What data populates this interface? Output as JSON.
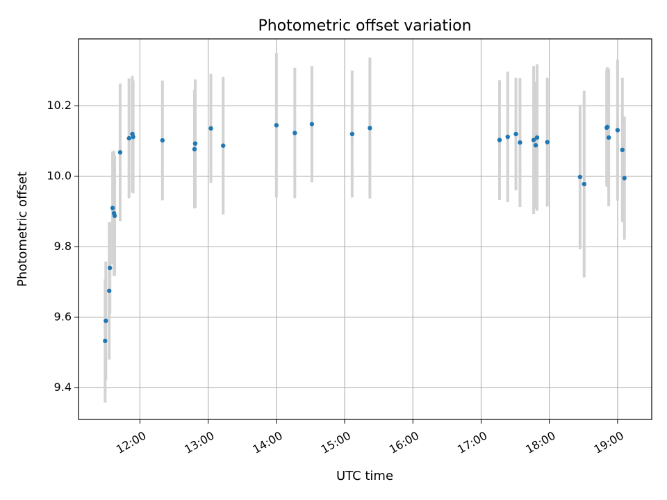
{
  "chart_data": {
    "type": "scatter",
    "title": "Photometric offset variation",
    "xlabel": "UTC time",
    "ylabel": "Photometric offset",
    "x_unit": "hours UTC",
    "xlim": [
      11.1,
      19.5
    ],
    "ylim": [
      9.31,
      10.39
    ],
    "grid": true,
    "point_color": "#1f77b4",
    "errorbar_color": "#d3d3d3",
    "x_ticks": [
      {
        "value": 12,
        "label": "12:00"
      },
      {
        "value": 13,
        "label": "13:00"
      },
      {
        "value": 14,
        "label": "14:00"
      },
      {
        "value": 15,
        "label": "15:00"
      },
      {
        "value": 16,
        "label": "16:00"
      },
      {
        "value": 17,
        "label": "17:00"
      },
      {
        "value": 18,
        "label": "18:00"
      },
      {
        "value": 19,
        "label": "19:00"
      }
    ],
    "y_ticks": [
      {
        "value": 9.4,
        "label": "9.4"
      },
      {
        "value": 9.6,
        "label": "9.6"
      },
      {
        "value": 9.8,
        "label": "9.8"
      },
      {
        "value": 10.0,
        "label": "10.0"
      },
      {
        "value": 10.2,
        "label": "10.2"
      }
    ],
    "points": [
      {
        "x": 11.49,
        "y": 9.533,
        "err": 0.175
      },
      {
        "x": 11.5,
        "y": 9.59,
        "err": 0.168
      },
      {
        "x": 11.55,
        "y": 9.675,
        "err": 0.195
      },
      {
        "x": 11.56,
        "y": 9.74,
        "err": 0.13
      },
      {
        "x": 11.6,
        "y": 9.91,
        "err": 0.16
      },
      {
        "x": 11.62,
        "y": 9.895,
        "err": 0.178
      },
      {
        "x": 11.63,
        "y": 9.888,
        "err": 0.17
      },
      {
        "x": 11.71,
        "y": 10.068,
        "err": 0.195
      },
      {
        "x": 11.84,
        "y": 10.108,
        "err": 0.17
      },
      {
        "x": 11.89,
        "y": 10.12,
        "err": 0.165
      },
      {
        "x": 11.9,
        "y": 10.112,
        "err": 0.16
      },
      {
        "x": 12.33,
        "y": 10.102,
        "err": 0.17
      },
      {
        "x": 12.8,
        "y": 10.077,
        "err": 0.168
      },
      {
        "x": 12.81,
        "y": 10.093,
        "err": 0.182
      },
      {
        "x": 13.04,
        "y": 10.136,
        "err": 0.155
      },
      {
        "x": 13.22,
        "y": 10.087,
        "err": 0.195
      },
      {
        "x": 14.0,
        "y": 10.145,
        "err": 0.205
      },
      {
        "x": 14.27,
        "y": 10.123,
        "err": 0.185
      },
      {
        "x": 14.52,
        "y": 10.148,
        "err": 0.165
      },
      {
        "x": 15.11,
        "y": 10.12,
        "err": 0.18
      },
      {
        "x": 15.37,
        "y": 10.137,
        "err": 0.2
      },
      {
        "x": 17.27,
        "y": 10.103,
        "err": 0.17
      },
      {
        "x": 17.39,
        "y": 10.112,
        "err": 0.185
      },
      {
        "x": 17.51,
        "y": 10.12,
        "err": 0.16
      },
      {
        "x": 17.57,
        "y": 10.096,
        "err": 0.183
      },
      {
        "x": 17.77,
        "y": 10.103,
        "err": 0.21
      },
      {
        "x": 17.8,
        "y": 10.088,
        "err": 0.18
      },
      {
        "x": 17.82,
        "y": 10.11,
        "err": 0.208
      },
      {
        "x": 17.97,
        "y": 10.097,
        "err": 0.183
      },
      {
        "x": 18.45,
        "y": 9.998,
        "err": 0.205
      },
      {
        "x": 18.51,
        "y": 9.978,
        "err": 0.265
      },
      {
        "x": 18.84,
        "y": 10.138,
        "err": 0.165
      },
      {
        "x": 18.85,
        "y": 10.14,
        "err": 0.17
      },
      {
        "x": 18.87,
        "y": 10.11,
        "err": 0.195
      },
      {
        "x": 19.0,
        "y": 10.131,
        "err": 0.2
      },
      {
        "x": 19.07,
        "y": 10.075,
        "err": 0.205
      },
      {
        "x": 19.1,
        "y": 9.995,
        "err": 0.175
      }
    ]
  }
}
